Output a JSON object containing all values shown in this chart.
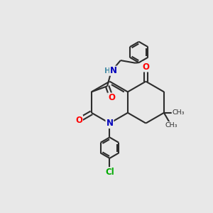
{
  "background_color": "#e8e8e8",
  "bond_color": "#2d2d2d",
  "atom_colors": {
    "O": "#ff0000",
    "N": "#0000bb",
    "Cl": "#00aa00",
    "H": "#4a8fa8",
    "C": "#2d2d2d"
  },
  "line_width": 1.5,
  "font_size": 8.5,
  "figsize": [
    3.0,
    3.0
  ],
  "dpi": 100
}
